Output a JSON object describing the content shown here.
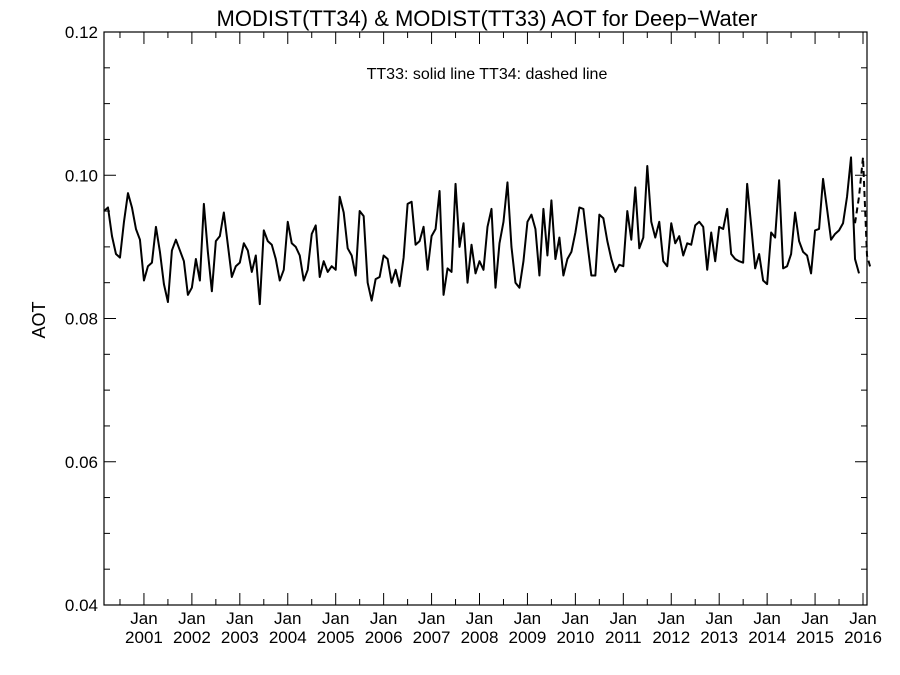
{
  "chart_data": {
    "type": "line",
    "title": "MODIST(TT34) & MODIST(TT33)  AOT for Deep−Water",
    "annotation": "TT33: solid line   TT34: dashed line",
    "xlabel": "",
    "ylabel": "AOT",
    "ylim": [
      0.04,
      0.12
    ],
    "yticks": [
      "0.04",
      "0.06",
      "0.08",
      "0.10",
      "0.12"
    ],
    "xlim": [
      "2000-03",
      "2016-02"
    ],
    "xtick_month": "Jan",
    "xtick_years": [
      "2001",
      "2002",
      "2003",
      "2004",
      "2005",
      "2006",
      "2007",
      "2008",
      "2009",
      "2010",
      "2011",
      "2012",
      "2013",
      "2014",
      "2015",
      "2016"
    ],
    "grid": false,
    "series": [
      {
        "name": "TT33",
        "style": "solid",
        "color": "#000000",
        "start": "2000-03",
        "step": "month",
        "values": [
          0.095,
          0.0955,
          0.0915,
          0.089,
          0.0885,
          0.0935,
          0.0975,
          0.0955,
          0.0925,
          0.091,
          0.0853,
          0.0873,
          0.0878,
          0.0928,
          0.0893,
          0.0848,
          0.0823,
          0.0895,
          0.091,
          0.0895,
          0.088,
          0.0833,
          0.0843,
          0.0883,
          0.0853,
          0.096,
          0.0893,
          0.0838,
          0.0908,
          0.0915,
          0.0948,
          0.0903,
          0.0858,
          0.0873,
          0.0878,
          0.0905,
          0.0895,
          0.0865,
          0.0888,
          0.082,
          0.0923,
          0.0908,
          0.0903,
          0.0883,
          0.0853,
          0.0868,
          0.0935,
          0.0905,
          0.09,
          0.0888,
          0.0853,
          0.0868,
          0.0918,
          0.093,
          0.0858,
          0.088,
          0.0865,
          0.0873,
          0.0868,
          0.097,
          0.0948,
          0.0898,
          0.0888,
          0.086,
          0.095,
          0.0943,
          0.085,
          0.0825,
          0.0855,
          0.0858,
          0.0888,
          0.0883,
          0.085,
          0.0868,
          0.0845,
          0.0885,
          0.096,
          0.0963,
          0.0903,
          0.0908,
          0.0928,
          0.0868,
          0.0915,
          0.0925,
          0.0978,
          0.0833,
          0.087,
          0.0865,
          0.0988,
          0.09,
          0.0933,
          0.085,
          0.0903,
          0.0863,
          0.088,
          0.0868,
          0.0928,
          0.0953,
          0.0843,
          0.0905,
          0.0935,
          0.099,
          0.09,
          0.085,
          0.0843,
          0.088,
          0.0935,
          0.0945,
          0.0925,
          0.086,
          0.0953,
          0.0888,
          0.0965,
          0.0883,
          0.0913,
          0.086,
          0.0883,
          0.0893,
          0.092,
          0.0955,
          0.0953,
          0.0905,
          0.086,
          0.086,
          0.0945,
          0.094,
          0.0908,
          0.0883,
          0.0865,
          0.0875,
          0.0873,
          0.095,
          0.091,
          0.0983,
          0.0898,
          0.0913,
          0.1013,
          0.0935,
          0.0913,
          0.0935,
          0.088,
          0.0873,
          0.0933,
          0.0905,
          0.0915,
          0.0888,
          0.0905,
          0.0903,
          0.093,
          0.0935,
          0.0928,
          0.0868,
          0.092,
          0.088,
          0.0928,
          0.0925,
          0.0953,
          0.089,
          0.0883,
          0.088,
          0.0878,
          0.0988,
          0.093,
          0.087,
          0.089,
          0.0853,
          0.0848,
          0.092,
          0.0913,
          0.0993,
          0.087,
          0.0873,
          0.089,
          0.0948,
          0.0908,
          0.0893,
          0.0888,
          0.0863,
          0.0923,
          0.0925,
          0.0995,
          0.0953,
          0.091,
          0.0918,
          0.0923,
          0.0933,
          0.097,
          0.1025,
          0.0883,
          0.0863
        ]
      },
      {
        "name": "TT34",
        "style": "dashed",
        "color": "#000000",
        "start": "2015-11",
        "step": "month",
        "values": [
          0.0933,
          0.097,
          0.1025,
          0.0888,
          0.0868
        ]
      }
    ]
  }
}
